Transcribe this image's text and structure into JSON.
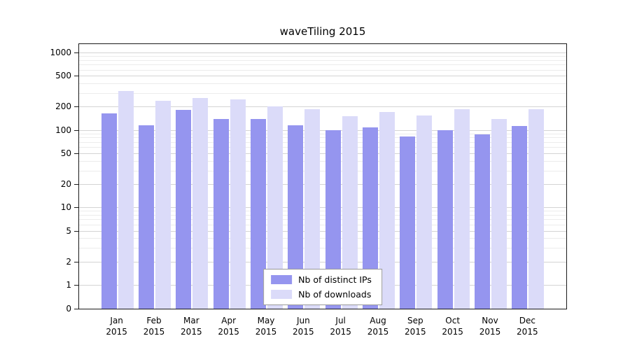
{
  "chart_data": {
    "type": "bar",
    "title": "waveTiling 2015",
    "year": "2015",
    "categories": [
      "Jan",
      "Feb",
      "Mar",
      "Apr",
      "May",
      "Jun",
      "Jul",
      "Aug",
      "Sep",
      "Oct",
      "Nov",
      "Dec"
    ],
    "series": [
      {
        "name": "Nb of distinct IPs",
        "color": "#9595ef",
        "values": [
          165,
          115,
          180,
          140,
          140,
          115,
          100,
          108,
          82,
          100,
          88,
          112
        ]
      },
      {
        "name": "Nb of downloads",
        "color": "#dbdbf9",
        "values": [
          320,
          240,
          260,
          250,
          200,
          185,
          150,
          170,
          155,
          185,
          140,
          185
        ]
      }
    ],
    "y_ticks": [
      0,
      1,
      2,
      5,
      10,
      20,
      50,
      100,
      200,
      500,
      1000
    ],
    "y_scale": "log",
    "ylim": [
      0,
      1000
    ],
    "grid": true,
    "legend_position": "bottom-center-inside"
  }
}
